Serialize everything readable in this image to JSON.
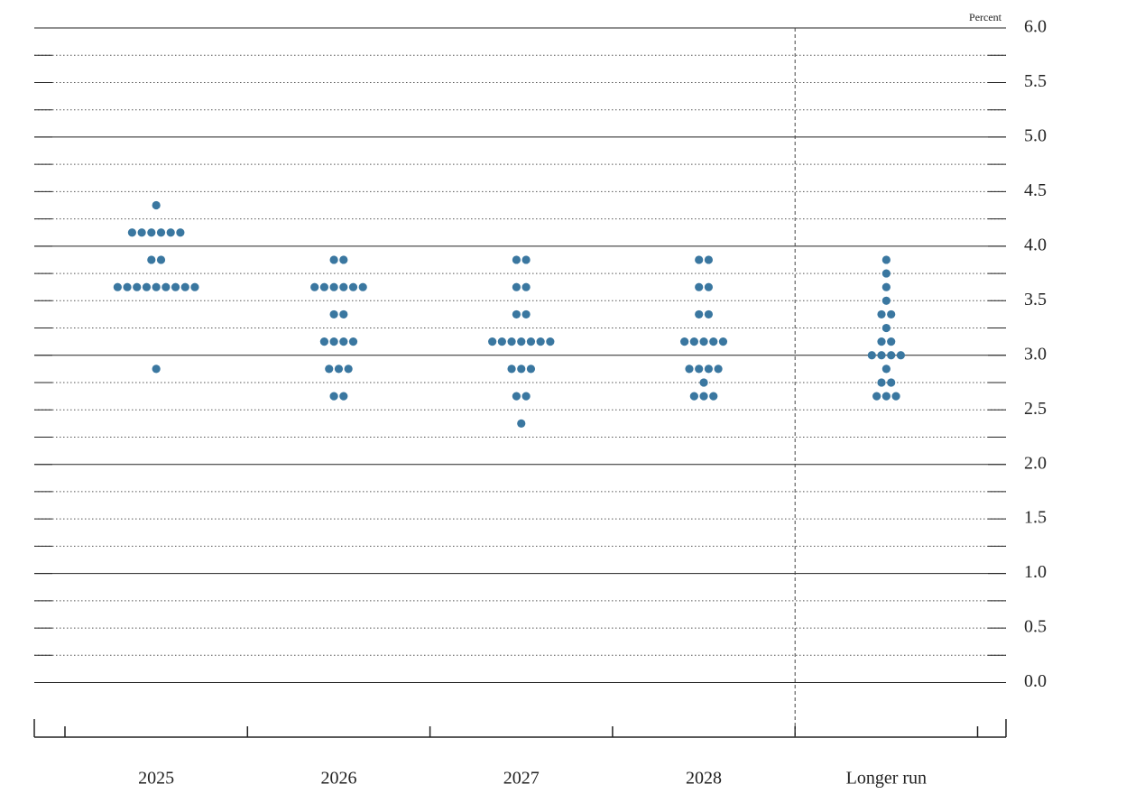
{
  "chart_data": {
    "type": "dot",
    "y_axis_label": "Percent",
    "categories": [
      "2025",
      "2026",
      "2027",
      "2028",
      "Longer run"
    ],
    "color": "#3a77a0",
    "values": [
      [
        4.375,
        4.125,
        4.125,
        4.125,
        4.125,
        4.125,
        4.125,
        3.875,
        3.875,
        3.625,
        3.625,
        3.625,
        3.625,
        3.625,
        3.625,
        3.625,
        3.625,
        3.625,
        2.875
      ],
      [
        3.875,
        3.875,
        3.625,
        3.625,
        3.625,
        3.625,
        3.625,
        3.625,
        3.375,
        3.375,
        3.125,
        3.125,
        3.125,
        3.125,
        2.875,
        2.875,
        2.875,
        2.625,
        2.625
      ],
      [
        3.875,
        3.875,
        3.625,
        3.625,
        3.375,
        3.375,
        3.125,
        3.125,
        3.125,
        3.125,
        3.125,
        3.125,
        3.125,
        2.875,
        2.875,
        2.875,
        2.625,
        2.625,
        2.375
      ],
      [
        3.875,
        3.875,
        3.625,
        3.625,
        3.375,
        3.375,
        3.125,
        3.125,
        3.125,
        3.125,
        3.125,
        2.875,
        2.875,
        2.875,
        2.875,
        2.75,
        2.625,
        2.625,
        2.625
      ],
      [
        3.875,
        3.75,
        3.625,
        3.5,
        3.375,
        3.375,
        3.25,
        3.125,
        3.125,
        3.0,
        3.0,
        3.0,
        3.0,
        2.875,
        2.75,
        2.75,
        2.625,
        2.625,
        2.625
      ]
    ],
    "ylim": [
      -0.5,
      6
    ],
    "yticks": [
      {
        "value": 0,
        "label": "0.0"
      },
      {
        "value": 0.5,
        "label": "0.5"
      },
      {
        "value": 1,
        "label": "1.0"
      },
      {
        "value": 1.5,
        "label": "1.5"
      },
      {
        "value": 2,
        "label": "2.0"
      },
      {
        "value": 2.5,
        "label": "2.5"
      },
      {
        "value": 3,
        "label": "3.0"
      },
      {
        "value": 3.5,
        "label": "3.5"
      },
      {
        "value": 4,
        "label": "4.0"
      },
      {
        "value": 4.5,
        "label": "4.5"
      },
      {
        "value": 5,
        "label": "5.0"
      },
      {
        "value": 5.5,
        "label": "5.5"
      },
      {
        "value": 6,
        "label": "6.0"
      }
    ],
    "minor_yticks": [
      0.25,
      0.75,
      1.25,
      1.75,
      2.25,
      2.75,
      3.25,
      3.75,
      4.25,
      4.75,
      5.25,
      5.75
    ],
    "grid": true
  }
}
